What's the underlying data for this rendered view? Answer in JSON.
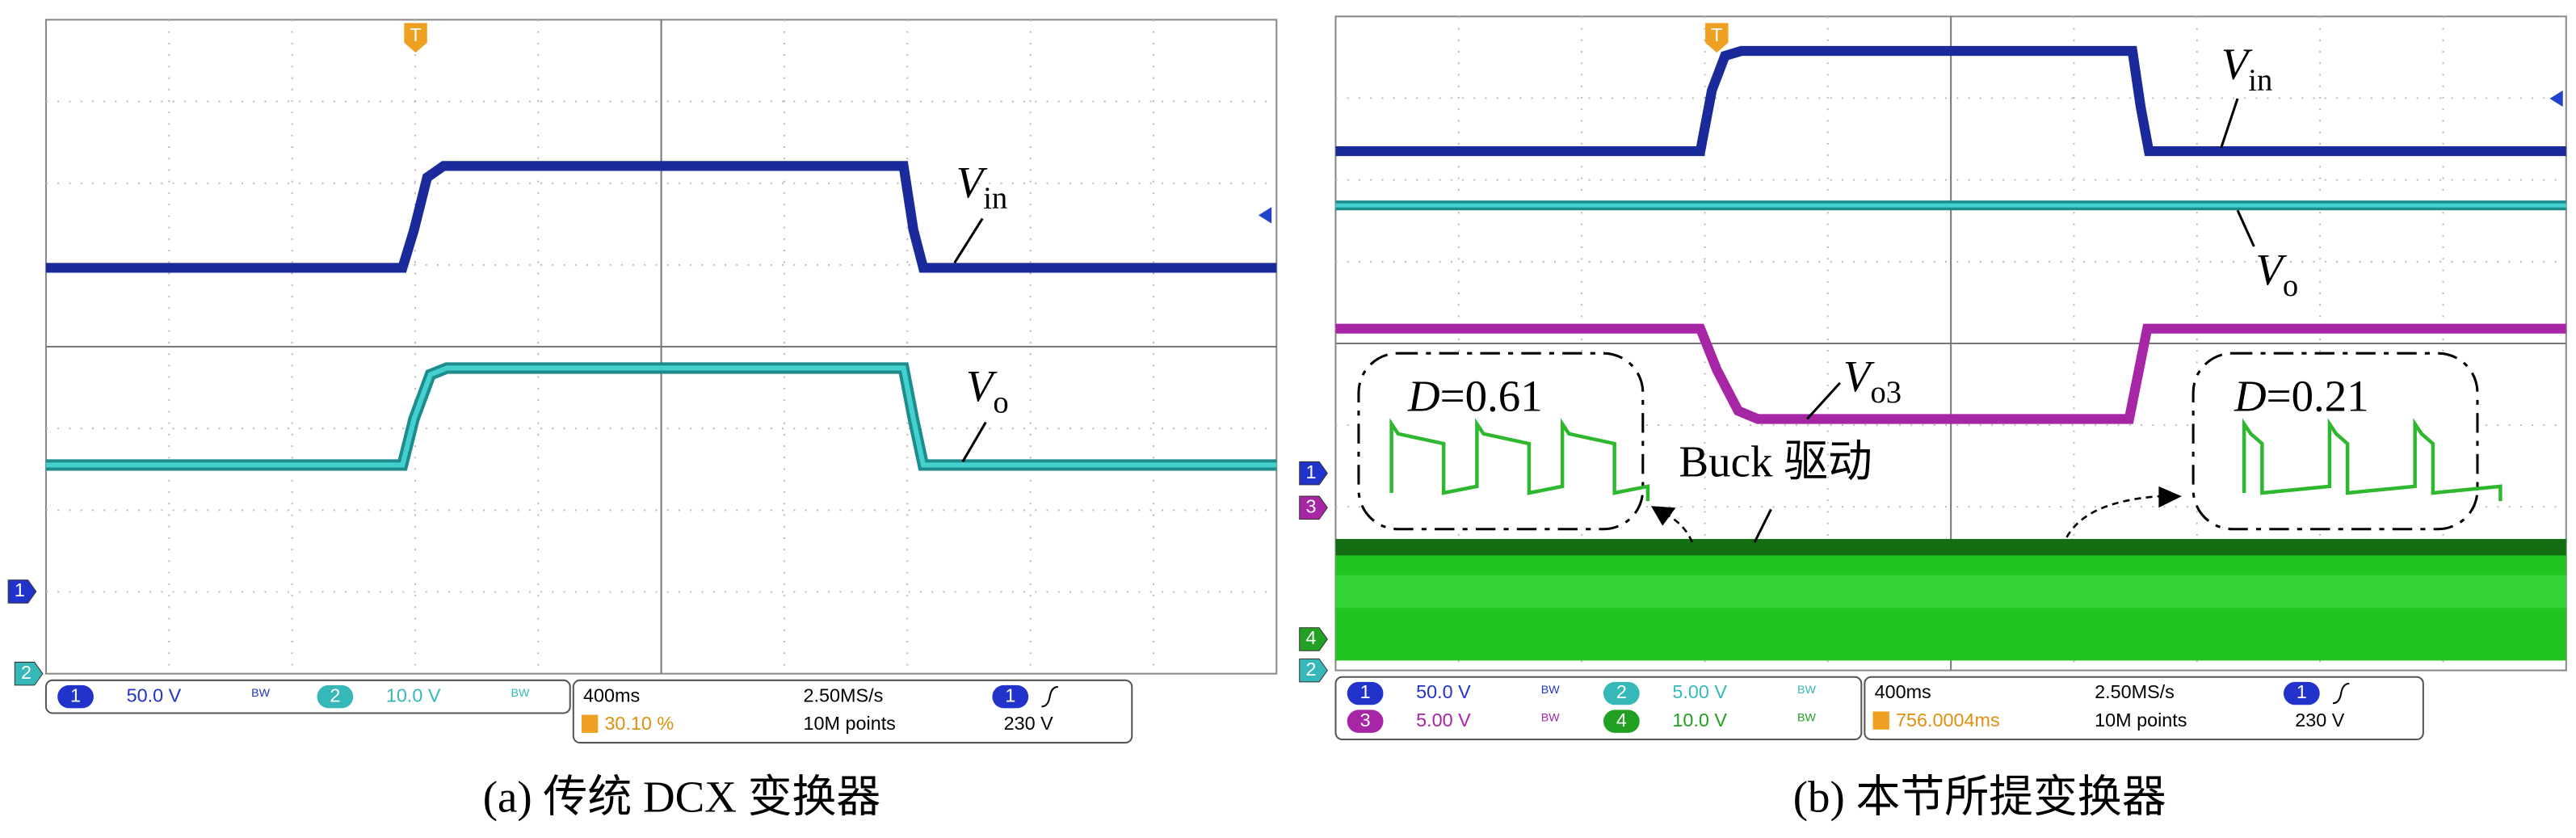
{
  "panels": [
    {
      "caption": "(a) 传统 DCX 变换器",
      "trace_labels": [
        {
          "symbol": "V",
          "subscript": "in"
        },
        {
          "symbol": "V",
          "subscript": "o"
        }
      ],
      "ground_markers": [
        "1",
        "2"
      ],
      "trigger": "T",
      "channels": [
        {
          "number": "1",
          "scale": "50.0 V",
          "bw": "BW"
        },
        {
          "number": "2",
          "scale": "10.0 V",
          "bw": "BW"
        }
      ],
      "timebase": {
        "scale": "400ms",
        "rate": "2.50MS/s",
        "position": "30.10 %",
        "points": "10M points",
        "source": "1",
        "level": "230 V"
      }
    },
    {
      "caption": "(b) 本节所提变换器",
      "trace_labels": [
        {
          "symbol": "V",
          "subscript": "in"
        },
        {
          "symbol": "V",
          "subscript": "o"
        },
        {
          "symbol": "V",
          "subscript": "o3"
        }
      ],
      "drive_label": "Buck 驱动",
      "duty": [
        {
          "symbol": "D",
          "text": "=0.61"
        },
        {
          "symbol": "D",
          "text": "=0.21"
        }
      ],
      "ground_markers": [
        "1",
        "3",
        "4",
        "2"
      ],
      "trigger": "T",
      "channels": [
        {
          "number": "1",
          "scale": "50.0 V",
          "bw": "BW"
        },
        {
          "number": "2",
          "scale": "5.00 V",
          "bw": "BW"
        },
        {
          "number": "3",
          "scale": "5.00 V",
          "bw": "BW"
        },
        {
          "number": "4",
          "scale": "10.0 V",
          "bw": "BW"
        }
      ],
      "timebase": {
        "scale": "400ms",
        "rate": "2.50MS/s",
        "position": "756.0004ms",
        "points": "10M points",
        "source": "1",
        "level": "230 V"
      }
    }
  ]
}
